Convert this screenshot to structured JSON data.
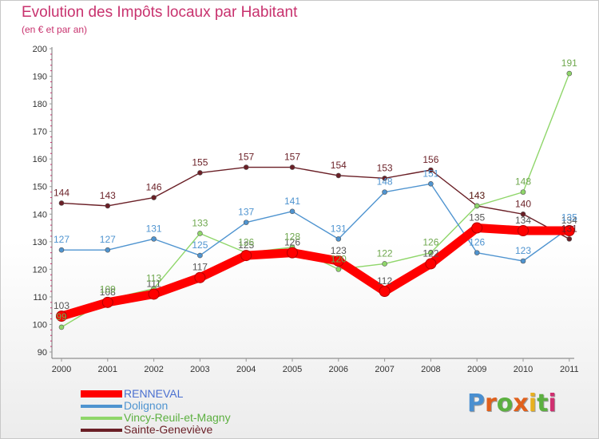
{
  "header": {
    "title": "Evolution des Impôts locaux par Habitant",
    "subtitle": "(en € et par an)"
  },
  "logo": {
    "text": "Proxiti",
    "colors": [
      "#4a8fd0",
      "#e0601c",
      "#5cb040",
      "#e0601c",
      "#e8b020",
      "#5cb040",
      "#d03070"
    ]
  },
  "chart_data": {
    "type": "line",
    "title": "Evolution des Impôts locaux par Habitant",
    "subtitle": "(en € et par an)",
    "xlabel": "",
    "ylabel": "",
    "categories": [
      "2000",
      "2001",
      "2002",
      "2003",
      "2004",
      "2005",
      "2006",
      "2007",
      "2008",
      "2009",
      "2010",
      "2011"
    ],
    "ylim": [
      90,
      200
    ],
    "yticks": [
      90,
      100,
      110,
      120,
      130,
      140,
      150,
      160,
      170,
      180,
      190,
      200
    ],
    "grid": false,
    "legend_position": "bottom-left",
    "series": [
      {
        "name": "RENNEVAL",
        "color": "#ff0000",
        "values": [
          103,
          108,
          111,
          117,
          125,
          126,
          123,
          112,
          122,
          135,
          134,
          134
        ]
      },
      {
        "name": "Dolignon",
        "color": "#4f94d0",
        "values": [
          127,
          127,
          131,
          125,
          137,
          141,
          131,
          148,
          151,
          126,
          123,
          135
        ]
      },
      {
        "name": "Vincy-Reuil-et-Magny",
        "color": "#8fd66a",
        "values": [
          99,
          109,
          113,
          133,
          126,
          128,
          120,
          122,
          126,
          143,
          148,
          191
        ]
      },
      {
        "name": "Sainte-Geneviève",
        "color": "#6a1f26",
        "values": [
          144,
          143,
          146,
          155,
          157,
          157,
          154,
          153,
          156,
          143,
          140,
          131
        ]
      }
    ]
  }
}
